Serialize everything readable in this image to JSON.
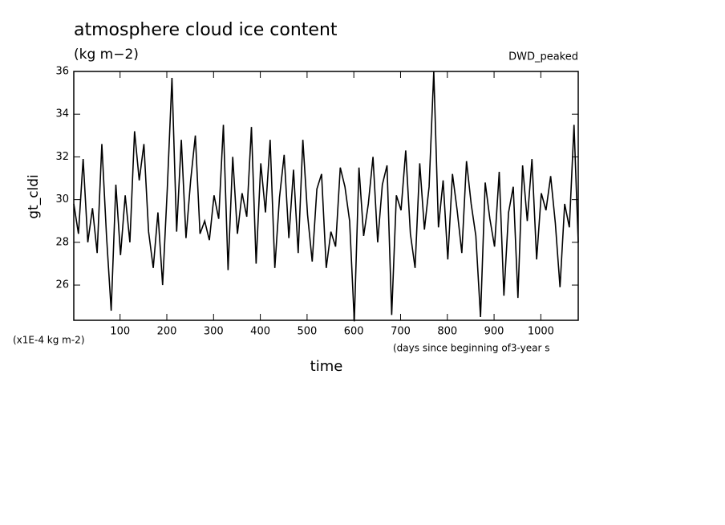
{
  "chart_data": {
    "type": "line",
    "title": "atmosphere cloud ice content",
    "subtitle": "(kg m−2)",
    "annotation": "DWD_peaked",
    "y_label": "gt_cldi",
    "y_unit_note": "(x1E-4 kg m-2)",
    "x_note": "(days since beginning of3-year s",
    "x_label": "time",
    "x": [
      1,
      11,
      21,
      31,
      41,
      51,
      61,
      71,
      81,
      91,
      101,
      111,
      121,
      131,
      141,
      151,
      161,
      171,
      181,
      191,
      201,
      211,
      221,
      231,
      241,
      251,
      261,
      271,
      281,
      291,
      301,
      311,
      321,
      331,
      341,
      351,
      361,
      371,
      381,
      391,
      401,
      411,
      421,
      431,
      441,
      451,
      461,
      471,
      481,
      491,
      501,
      511,
      521,
      531,
      541,
      551,
      561,
      571,
      581,
      591,
      601,
      611,
      621,
      631,
      641,
      651,
      661,
      671,
      681,
      691,
      701,
      711,
      721,
      731,
      741,
      751,
      761,
      771,
      781,
      791,
      801,
      811,
      821,
      831,
      841,
      851,
      861,
      871,
      881,
      891,
      901,
      911,
      921,
      931,
      941,
      951,
      961,
      971,
      981,
      991,
      1001,
      1011,
      1021,
      1031,
      1041,
      1051,
      1061,
      1071,
      1080
    ],
    "series": [
      {
        "name": "gt_cldi",
        "color": "#000000",
        "values": [
          29.8,
          28.4,
          31.9,
          28.0,
          29.6,
          27.5,
          32.6,
          28.3,
          24.8,
          30.7,
          27.4,
          30.2,
          28.0,
          33.2,
          30.9,
          32.6,
          28.5,
          26.8,
          29.4,
          26.0,
          30.5,
          35.7,
          28.5,
          32.8,
          28.2,
          30.9,
          33.0,
          28.4,
          29.0,
          28.1,
          30.2,
          29.1,
          33.5,
          26.7,
          32.0,
          28.4,
          30.3,
          29.2,
          33.4,
          27.0,
          31.7,
          29.4,
          32.8,
          26.8,
          30.1,
          32.1,
          28.2,
          31.4,
          27.5,
          32.8,
          29.3,
          27.1,
          30.5,
          31.2,
          26.8,
          28.5,
          27.8,
          31.5,
          30.6,
          29.0,
          24.3,
          31.5,
          28.3,
          29.8,
          32.0,
          28.0,
          30.7,
          31.6,
          24.6,
          30.2,
          29.5,
          32.3,
          28.4,
          26.8,
          31.7,
          28.6,
          30.6,
          36.0,
          28.7,
          30.9,
          27.2,
          31.2,
          29.5,
          27.5,
          31.8,
          29.8,
          28.3,
          24.5,
          30.8,
          29.1,
          27.8,
          31.3,
          25.5,
          29.4,
          30.6,
          25.4,
          31.6,
          29.0,
          31.9,
          27.2,
          30.3,
          29.5,
          31.1,
          28.9,
          25.9,
          29.8,
          28.7,
          33.5,
          28.0
        ]
      }
    ],
    "xlim": [
      1,
      1080
    ],
    "xticks": [
      100,
      200,
      300,
      400,
      500,
      600,
      700,
      800,
      900,
      1000
    ],
    "ylim": [
      24.35,
      36
    ],
    "yticks": [
      26,
      28,
      30,
      32,
      34,
      36
    ]
  }
}
